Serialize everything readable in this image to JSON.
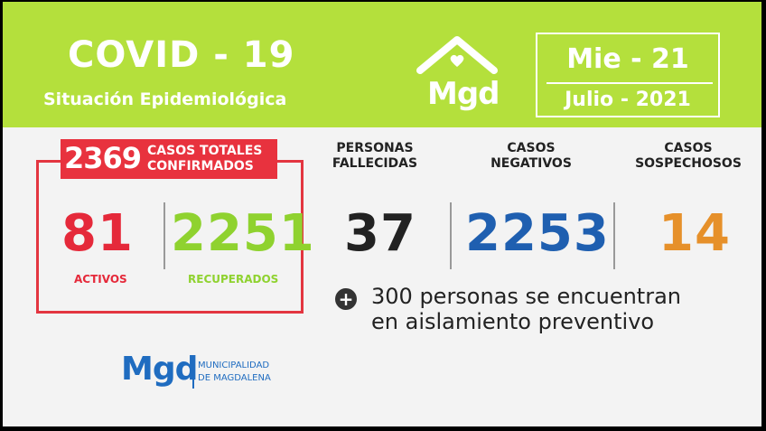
{
  "header": {
    "title": "COVID - 19",
    "subtitle": "Situación Epidemiológica",
    "logo_text": "Mgd",
    "date_day": "Mie - 21",
    "date_month": "Julio - 2021"
  },
  "totals": {
    "value": "2369",
    "label_line1": "CASOS TOTALES",
    "label_line2": "CONFIRMADOS",
    "activos": "81",
    "activos_label": "ACTIVOS",
    "recuperados": "2251",
    "recuperados_label": "RECUPERADOS"
  },
  "stats": {
    "fallecidos_head_1": "PERSONAS",
    "fallecidos_head_2": "FALLECIDAS",
    "fallecidos": "37",
    "negativos_head_1": "CASOS",
    "negativos_head_2": "NEGATIVOS",
    "negativos": "2253",
    "sospechosos_head_1": "CASOS",
    "sospechosos_head_2": "SOSPECHOSOS",
    "sospechosos": "14"
  },
  "note": {
    "icon": "plus-icon",
    "line1": "300 personas se encuentran",
    "line2": "en aislamiento preventivo"
  },
  "footer": {
    "logo_text": "Mgd",
    "line1": "MUNICIPALIDAD",
    "line2": "DE MAGDALENA"
  },
  "colors": {
    "header_bg": "#b4e03c",
    "red": "#e5293a",
    "green": "#8fd22f",
    "blue": "#1f5fb0",
    "orange": "#e6902a"
  }
}
